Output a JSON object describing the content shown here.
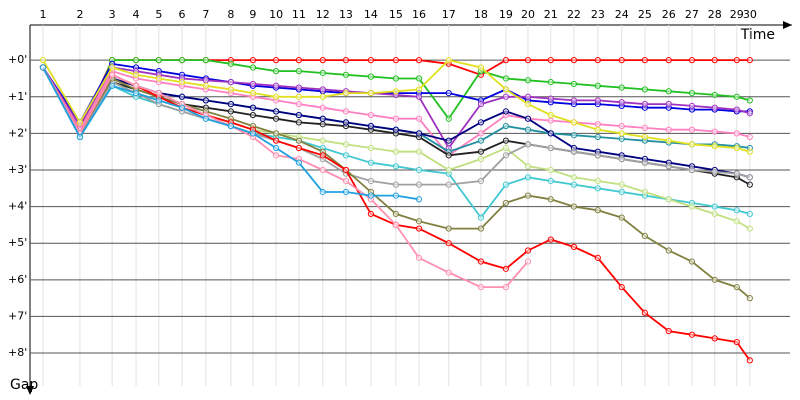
{
  "chart_data": {
    "type": "line",
    "x_label": "Time",
    "y_label": "Gap",
    "xlim": [
      0,
      21
    ],
    "ylim": [
      -0.96,
      8.9
    ],
    "grid": true,
    "xticks": [
      {
        "value": 0.36,
        "label": "1"
      },
      {
        "value": 1.38,
        "label": "2"
      },
      {
        "value": 2.27,
        "label": "3"
      },
      {
        "value": 2.93,
        "label": "4"
      },
      {
        "value": 3.56,
        "label": "5"
      },
      {
        "value": 4.2,
        "label": "6"
      },
      {
        "value": 4.86,
        "label": "7"
      },
      {
        "value": 5.55,
        "label": "8"
      },
      {
        "value": 6.16,
        "label": "9"
      },
      {
        "value": 6.8,
        "label": "10"
      },
      {
        "value": 7.43,
        "label": "11"
      },
      {
        "value": 8.09,
        "label": "12"
      },
      {
        "value": 8.73,
        "label": "13"
      },
      {
        "value": 9.42,
        "label": "14"
      },
      {
        "value": 10.11,
        "label": "15"
      },
      {
        "value": 10.75,
        "label": "16"
      },
      {
        "value": 11.57,
        "label": "17"
      },
      {
        "value": 12.46,
        "label": "18"
      },
      {
        "value": 13.15,
        "label": "19"
      },
      {
        "value": 13.76,
        "label": "20"
      },
      {
        "value": 14.39,
        "label": "21"
      },
      {
        "value": 15.03,
        "label": "22"
      },
      {
        "value": 15.69,
        "label": "23"
      },
      {
        "value": 16.35,
        "label": "24"
      },
      {
        "value": 16.99,
        "label": "25"
      },
      {
        "value": 17.65,
        "label": "26"
      },
      {
        "value": 18.29,
        "label": "27"
      },
      {
        "value": 18.92,
        "label": "28"
      },
      {
        "value": 19.53,
        "label": "29"
      },
      {
        "value": 19.89,
        "label": "30"
      }
    ],
    "yticks": [
      {
        "value": 0,
        "label": "+0'"
      },
      {
        "value": 1,
        "label": "+1'"
      },
      {
        "value": 2,
        "label": "+2'"
      },
      {
        "value": 3,
        "label": "+3'"
      },
      {
        "value": 4,
        "label": "+4'"
      },
      {
        "value": 5,
        "label": "+5'"
      },
      {
        "value": 6,
        "label": "+6'"
      },
      {
        "value": 7,
        "label": "+7'"
      },
      {
        "value": 8,
        "label": "+8'"
      }
    ],
    "series": [
      {
        "color": "#ff0000",
        "values": [
          0.2,
          1.9,
          0,
          0,
          0,
          0,
          0,
          0,
          0,
          0,
          0,
          0,
          0,
          0,
          0,
          0,
          0.1,
          0.4,
          0,
          0,
          0,
          0,
          0,
          0,
          0,
          0,
          0,
          0,
          0,
          0
        ]
      },
      {
        "color": "#20c020",
        "values": [
          0.2,
          2.0,
          0,
          0,
          0,
          0,
          0,
          0.1,
          0.2,
          0.3,
          0.3,
          0.35,
          0.4,
          0.45,
          0.5,
          0.5,
          1.6,
          0.3,
          0.5,
          0.55,
          0.6,
          0.65,
          0.7,
          0.75,
          0.8,
          0.85,
          0.9,
          0.95,
          1.0,
          1.1
        ]
      },
      {
        "color": "#0000e0",
        "values": [
          0.2,
          1.7,
          0.1,
          0.2,
          0.3,
          0.4,
          0.5,
          0.6,
          0.7,
          0.75,
          0.8,
          0.85,
          0.9,
          0.9,
          0.9,
          0.9,
          0.9,
          1.1,
          0.8,
          1.1,
          1.15,
          1.2,
          1.2,
          1.25,
          1.3,
          1.3,
          1.35,
          1.35,
          1.4,
          1.4
        ]
      },
      {
        "color": "#a030c0",
        "values": [
          0.2,
          1.8,
          0.2,
          0.3,
          0.4,
          0.5,
          0.55,
          0.6,
          0.65,
          0.7,
          0.75,
          0.8,
          0.85,
          0.9,
          0.95,
          1.0,
          2.4,
          1.2,
          1.0,
          1.0,
          1.05,
          1.1,
          1.1,
          1.15,
          1.2,
          1.2,
          1.25,
          1.3,
          1.35,
          1.45
        ]
      },
      {
        "color": "#ff80c0",
        "values": [
          0.2,
          1.9,
          0.3,
          0.5,
          0.6,
          0.7,
          0.8,
          0.9,
          1.0,
          1.1,
          1.2,
          1.3,
          1.4,
          1.5,
          1.6,
          1.6,
          2.6,
          2.0,
          1.5,
          1.6,
          1.65,
          1.7,
          1.75,
          1.8,
          1.85,
          1.9,
          1.9,
          1.95,
          2.0,
          2.1
        ]
      },
      {
        "color": "#2090a0",
        "values": [
          0.2,
          2.1,
          0.5,
          0.7,
          0.9,
          1.0,
          1.1,
          1.2,
          1.3,
          1.4,
          1.5,
          1.6,
          1.7,
          1.8,
          1.9,
          2.0,
          2.5,
          2.2,
          1.8,
          1.9,
          2.0,
          2.05,
          2.1,
          2.15,
          2.2,
          2.25,
          2.3,
          2.3,
          2.35,
          2.4
        ]
      },
      {
        "color": "#e0e020",
        "values": [
          0,
          1.7,
          0.2,
          0.4,
          0.5,
          0.6,
          0.7,
          0.8,
          0.9,
          1.0,
          1.0,
          1.0,
          0.9,
          0.9,
          0.85,
          0.8,
          0,
          0.2,
          0.8,
          1.2,
          1.5,
          1.7,
          1.9,
          2.0,
          2.1,
          2.2,
          2.3,
          2.35,
          2.4,
          2.5
        ]
      },
      {
        "color": "#202020",
        "values": [
          0.2,
          2.0,
          0.6,
          0.8,
          1.0,
          1.2,
          1.3,
          1.4,
          1.5,
          1.6,
          1.7,
          1.75,
          1.8,
          1.9,
          2.0,
          2.1,
          2.6,
          2.5,
          2.2,
          2.3,
          2.4,
          2.5,
          2.6,
          2.7,
          2.8,
          2.9,
          3.0,
          3.1,
          3.2,
          3.4
        ]
      },
      {
        "color": "#000080",
        "values": [
          0.2,
          2.0,
          0.5,
          0.7,
          0.9,
          1.0,
          1.1,
          1.2,
          1.3,
          1.4,
          1.5,
          1.6,
          1.7,
          1.8,
          1.9,
          2.0,
          2.2,
          1.7,
          1.4,
          1.6,
          2.0,
          2.4,
          2.5,
          2.6,
          2.7,
          2.8,
          2.9,
          3.0,
          3.1,
          3.2
        ]
      },
      {
        "color": "#40c8d0",
        "values": [
          0.2,
          2.1,
          0.7,
          1.0,
          1.2,
          1.4,
          1.6,
          1.8,
          2.0,
          2.1,
          2.2,
          2.4,
          2.6,
          2.8,
          2.9,
          3.0,
          3.1,
          4.3,
          3.4,
          3.2,
          3.3,
          3.4,
          3.5,
          3.6,
          3.7,
          3.8,
          3.9,
          4.0,
          4.1,
          4.2
        ]
      },
      {
        "color": "#c0e080",
        "values": [
          0.2,
          2.0,
          0.6,
          0.9,
          1.1,
          1.3,
          1.5,
          1.7,
          1.9,
          2.0,
          2.1,
          2.2,
          2.3,
          2.4,
          2.5,
          2.5,
          3.0,
          2.7,
          2.4,
          2.9,
          3.0,
          3.2,
          3.3,
          3.4,
          3.6,
          3.8,
          4.0,
          4.2,
          4.4,
          4.6
        ]
      },
      {
        "color": "#a0a0a0",
        "values": [
          0.2,
          2.0,
          0.6,
          0.9,
          1.2,
          1.4,
          1.6,
          1.8,
          2.0,
          2.2,
          2.4,
          2.7,
          3.1,
          3.3,
          3.4,
          3.4,
          3.4,
          3.3,
          2.6,
          2.3,
          2.4,
          2.5,
          2.6,
          2.7,
          2.8,
          2.9,
          3.0,
          3.05,
          3.1,
          3.2
        ]
      },
      {
        "color": "#808040",
        "values": [
          0.2,
          2.0,
          0.5,
          0.8,
          1.0,
          1.2,
          1.4,
          1.6,
          1.8,
          2.0,
          2.2,
          2.5,
          3.0,
          3.6,
          4.2,
          4.4,
          4.6,
          4.6,
          3.9,
          3.7,
          3.8,
          4.0,
          4.1,
          4.3,
          4.8,
          5.2,
          5.5,
          6.0,
          6.2,
          6.5
        ]
      },
      {
        "color": "#ff0000",
        "values": [
          0.2,
          2.0,
          0.4,
          0.7,
          1.0,
          1.3,
          1.5,
          1.7,
          1.9,
          2.2,
          2.4,
          2.6,
          3.0,
          4.2,
          4.5,
          4.6,
          5.0,
          5.5,
          5.7,
          5.2,
          4.9,
          5.1,
          5.4,
          6.2,
          6.9,
          7.4,
          7.5,
          7.6,
          7.7,
          8.2
        ]
      },
      {
        "color": "#ff90b0",
        "values": [
          0.2,
          2.0,
          0.4,
          0.7,
          0.9,
          1.2,
          1.5,
          1.8,
          2.1,
          2.6,
          2.7,
          3.0,
          3.3,
          3.8,
          4.5,
          5.4,
          5.8,
          6.2,
          6.2,
          5.5,
          null,
          null,
          null,
          null,
          null,
          null,
          null,
          null,
          null,
          null
        ]
      },
      {
        "color": "#20a0e0",
        "values": [
          0.2,
          2.1,
          0.7,
          0.9,
          1.1,
          1.3,
          1.6,
          1.8,
          2.0,
          2.4,
          2.8,
          3.6,
          3.6,
          3.7,
          3.7,
          3.8,
          null,
          null,
          null,
          null,
          null,
          null,
          null,
          null,
          null,
          null,
          null,
          null,
          null,
          null
        ]
      }
    ]
  }
}
